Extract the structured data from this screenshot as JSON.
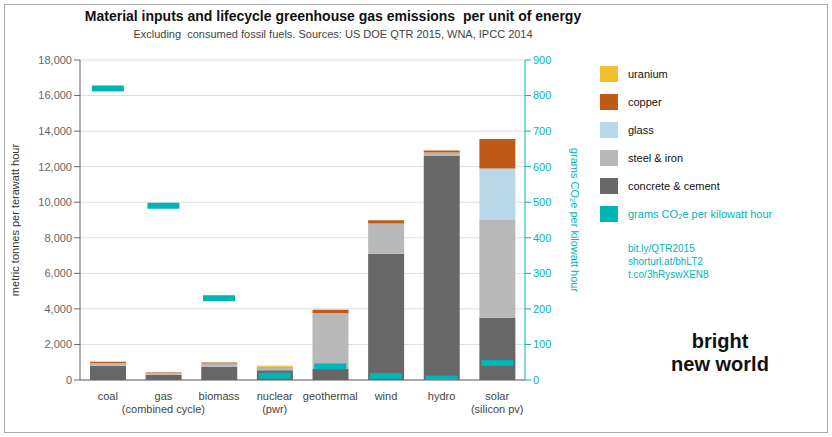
{
  "chart_data": {
    "type": "bar",
    "title": "Material inputs and lifecycle greenhouse gas emissions  per unit of energy",
    "subtitle": "Excluding  consumed fossil fuels. Sources: US DOE QTR 2015, WNA, IPCC 2014",
    "categories": [
      "coal",
      "gas\n(combined cycle)",
      "biomass",
      "nuclear\n(pwr)",
      "geothermal",
      "wind",
      "hydro",
      "solar\n(silicon pv)"
    ],
    "stacked": true,
    "grid": true,
    "legend": "right",
    "ylabel": "metric tonnes per terawatt hour",
    "y2label": "grams CO₂e per kilowatt hour",
    "ylim": [
      0,
      18000
    ],
    "yticks": [
      0,
      {
        "value": 2000,
        "label": "2,000"
      },
      {
        "value": 4000,
        "label": "4,000"
      },
      {
        "value": 6000,
        "label": "6,000"
      },
      {
        "value": 8000,
        "label": "8,000"
      },
      {
        "value": 10000,
        "label": "10,000"
      },
      {
        "value": 12000,
        "label": "12,000"
      },
      {
        "value": 14000,
        "label": "14,000"
      },
      {
        "value": 16000,
        "label": "16,000"
      },
      {
        "value": 18000,
        "label": "18,000"
      }
    ],
    "y2lim": [
      0,
      900
    ],
    "y2ticks": [
      0,
      100,
      200,
      300,
      400,
      500,
      600,
      700,
      800,
      900
    ],
    "series": [
      {
        "name": "concrete & cement",
        "color": "#676767",
        "values": [
          800,
          300,
          750,
          550,
          650,
          7100,
          12600,
          3500
        ]
      },
      {
        "name": "steel & iron",
        "color": "#b8b8b8",
        "values": [
          160,
          110,
          180,
          170,
          3100,
          1700,
          190,
          5500
        ]
      },
      {
        "name": "glass",
        "color": "#b8d8ea",
        "values": [
          0,
          0,
          0,
          0,
          0,
          0,
          0,
          2900
        ]
      },
      {
        "name": "copper",
        "color": "#c05a18",
        "values": [
          70,
          25,
          50,
          25,
          200,
          180,
          120,
          1650
        ]
      },
      {
        "name": "uranium",
        "color": "#f0c030",
        "values": [
          0,
          0,
          0,
          55,
          0,
          0,
          0,
          0
        ]
      },
      {
        "name": "grams CO₂e per kilowatt hour",
        "color": "#00b5b5",
        "axis": "y2",
        "type": "scatter",
        "marker": "rect",
        "values": [
          820,
          490,
          230,
          12,
          38,
          11,
          4,
          48
        ]
      }
    ],
    "annotations": [
      {
        "text": "bit.ly/QTR2015\nshorturl.at/bhLT2\nt.co/3hRyswXEN8",
        "color": "#00b5b5"
      },
      {
        "text": "bright\nnew world"
      }
    ]
  }
}
